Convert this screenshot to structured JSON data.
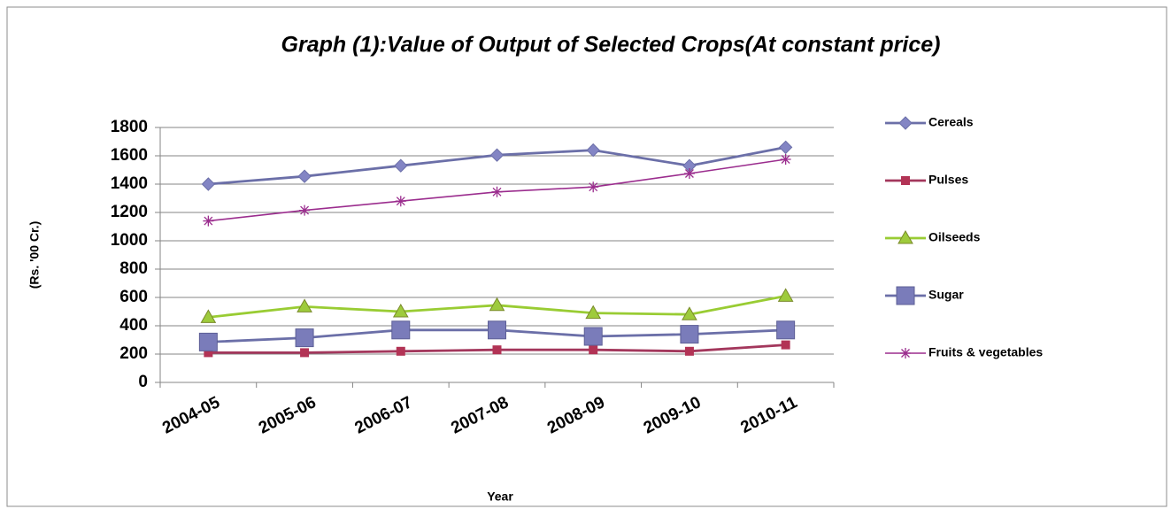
{
  "chart_data": {
    "type": "line",
    "title": "Graph (1):Value of Output of  Selected Crops(At constant price)",
    "y_label": "(Rs. '00 Cr.)",
    "x_label": "Year",
    "categories": [
      "2004-05",
      "2005-06",
      "2006-07",
      "2007-08",
      "2008-09",
      "2009-10",
      "2010-11"
    ],
    "series": [
      {
        "name": "Cereals",
        "color": "#6b6fa8",
        "marker_color": "#8385c4",
        "marker": "diamond",
        "values": [
          1400,
          1455,
          1530,
          1605,
          1640,
          1530,
          1660
        ]
      },
      {
        "name": "Pulses",
        "color": "#a3375c",
        "marker_color": "#b23355",
        "marker": "square",
        "values": [
          210,
          210,
          220,
          230,
          230,
          220,
          265
        ]
      },
      {
        "name": "Oilseeds",
        "color": "#99cc33",
        "marker_color": "#9ecb3c",
        "marker": "triangle",
        "values": [
          460,
          535,
          500,
          545,
          490,
          480,
          610
        ]
      },
      {
        "name": "Sugar",
        "color": "#6b6fa8",
        "marker_color": "#7a7cba",
        "marker": "bigsquare",
        "values": [
          285,
          315,
          370,
          370,
          325,
          340,
          370
        ]
      },
      {
        "name": "Fruits & vegetables",
        "color": "#9b2d8e",
        "marker_color": "#9b2d8e",
        "marker": "asterisk",
        "values": [
          1140,
          1215,
          1280,
          1345,
          1380,
          1475,
          1575
        ]
      }
    ],
    "ylim": [
      0,
      1800
    ],
    "yticks": [
      0,
      200,
      400,
      600,
      800,
      1000,
      1200,
      1400,
      1600,
      1800
    ],
    "grid": true,
    "legend": "right"
  }
}
